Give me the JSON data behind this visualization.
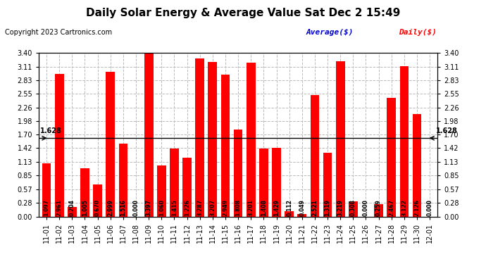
{
  "title": "Daily Solar Energy & Average Value Sat Dec 2 15:49",
  "copyright": "Copyright 2023 Cartronics.com",
  "legend_avg": "Average($)",
  "legend_daily": "Daily($)",
  "average_line": 1.628,
  "bar_color": "#ff0000",
  "average_line_color": "#0000cc",
  "avg_label_color": "#0000cc",
  "daily_label_color": "#ff0000",
  "categories": [
    "11-01",
    "11-02",
    "11-03",
    "11-04",
    "11-05",
    "11-06",
    "11-07",
    "11-08",
    "11-09",
    "11-10",
    "11-11",
    "11-12",
    "11-13",
    "11-14",
    "11-15",
    "11-16",
    "11-17",
    "11-18",
    "11-19",
    "11-20",
    "11-21",
    "11-22",
    "11-23",
    "11-24",
    "11-25",
    "11-26",
    "11-27",
    "11-28",
    "11-29",
    "11-30",
    "12-01"
  ],
  "values": [
    1.097,
    2.961,
    0.204,
    1.005,
    0.67,
    2.999,
    1.516,
    0.0,
    3.397,
    1.06,
    1.415,
    1.226,
    3.287,
    3.207,
    2.949,
    1.808,
    3.201,
    1.408,
    1.429,
    0.112,
    0.049,
    2.521,
    1.319,
    3.219,
    0.308,
    0.0,
    0.259,
    2.467,
    3.122,
    2.126,
    0.0
  ],
  "ylim": [
    0,
    3.4
  ],
  "yticks": [
    0.0,
    0.28,
    0.57,
    0.85,
    1.13,
    1.42,
    1.7,
    1.98,
    2.26,
    2.55,
    2.83,
    3.11,
    3.4
  ],
  "background_color": "#ffffff",
  "grid_color": "#bbbbbb",
  "title_fontsize": 11,
  "copyright_fontsize": 7,
  "tick_fontsize": 7,
  "bar_label_fontsize": 5.5,
  "legend_fontsize": 8
}
